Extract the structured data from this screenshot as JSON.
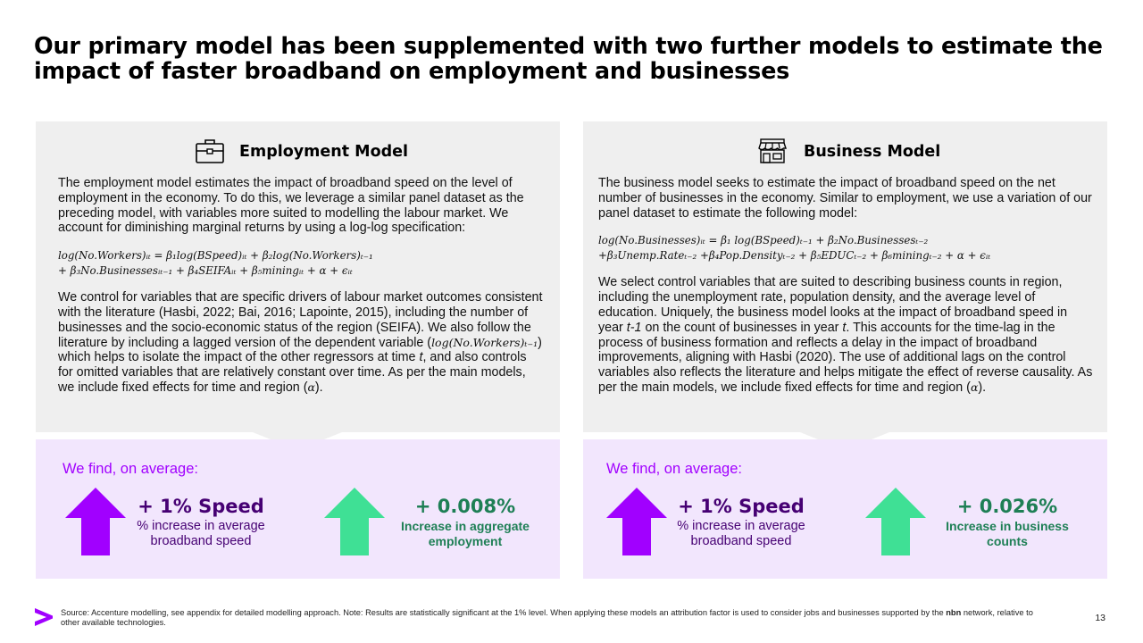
{
  "title": "Our primary model has been supplemented with two further models to estimate the impact of faster broadband on employment and businesses",
  "employment": {
    "icon": "briefcase-icon",
    "heading": "Employment Model",
    "intro": "The employment model estimates the impact of broadband speed on the level of employment in the economy. To do this, we leverage a similar panel dataset as the preceding model, with variables more suited to modelling the labour market. We account for diminishing marginal returns by using a log-log specification:",
    "equation_line1": "log(No.Workers)ᵢₜ = β₁log(BSpeed)ᵢₜ + β₂log(No.Workers)ₜ₋₁",
    "equation_line2": "+ β₃No.Businessesᵢₜ₋₁ + β₄SEIFAᵢₜ + β₅miningᵢₜ + α + ϵᵢₜ",
    "controls_part1": "We control for variables that are specific drivers of labour market outcomes consistent with the literature (Hasbi, 2022; Bai, 2016; Lapointe, 2015), including the number of businesses and the socio-economic status of the region (SEIFA). We also follow the literature by including a lagged version of the dependent variable (",
    "controls_lag": "log(No.Workers)ₜ₋₁",
    "controls_part2": ") which helps to isolate the impact of the other regressors at time ",
    "controls_t": "t",
    "controls_part3": ", and also controls for omitted variables that are relatively constant over time. As per the main models, we include fixed effects for time and region (",
    "controls_alpha": "α",
    "controls_part4": ").",
    "find_label": "We find, on average:",
    "speed_value": "+ 1% Speed",
    "speed_desc": "% increase in average broadband speed",
    "result_value": "+ 0.008%",
    "result_desc": "Increase in aggregate employment"
  },
  "business": {
    "icon": "storefront-icon",
    "heading": "Business Model",
    "intro": "The business model seeks to estimate the impact of broadband speed on the net number of businesses in the economy. Similar to employment, we use a variation of our panel dataset to estimate the following model:",
    "equation_line1": "log(No.Businesses)ᵢₜ = β₁ log(BSpeed)ₜ₋₁ + β₂No.Businessesₜ₋₂",
    "equation_line2": "+β₃Unemp.Rateₜ₋₂ +β₄Pop.Densityₜ₋₂ + β₅EDUCₜ₋₂ + β₆miningₜ₋₂ + α + ϵᵢₜ",
    "controls_part1": "We select control variables that are suited to describing business counts in region, including the unemployment rate, population density, and the average level of education. Uniquely, the business model looks at the impact of broadband speed in year ",
    "controls_t1": "t-1",
    "controls_part2": " on the count of businesses in year ",
    "controls_t": "t",
    "controls_part3": ". This accounts for the time-lag in the process of business formation and reflects a delay in the impact of broadband improvements, aligning with Hasbi (2020). The use of additional lags on the control variables also reflects the literature and helps mitigate the effect of reverse causality. As per the main models, we include fixed effects for time and region (",
    "controls_alpha": "α",
    "controls_part4": ").",
    "find_label": "We find, on average:",
    "speed_value": "+ 1% Speed",
    "speed_desc": "% increase in average broadband speed",
    "result_value": "+ 0.026%",
    "result_desc": "Increase in business counts"
  },
  "colors": {
    "purple_arrow": "#a100ff",
    "green_arrow": "#3fe095",
    "panel_grey": "#efefef",
    "panel_purple": "#f2e6fd"
  },
  "footer": {
    "logo": "accenture-chevron-logo",
    "source_part1": "Source: Accenture modelling, see appendix for detailed modelling approach. Note: Results are statistically significant at the 1% level. When applying these models an attribution factor is used to consider jobs and businesses supported by the ",
    "source_brand": "nbn",
    "source_part2": " network, relative to other available technologies.",
    "page_number": "13"
  }
}
